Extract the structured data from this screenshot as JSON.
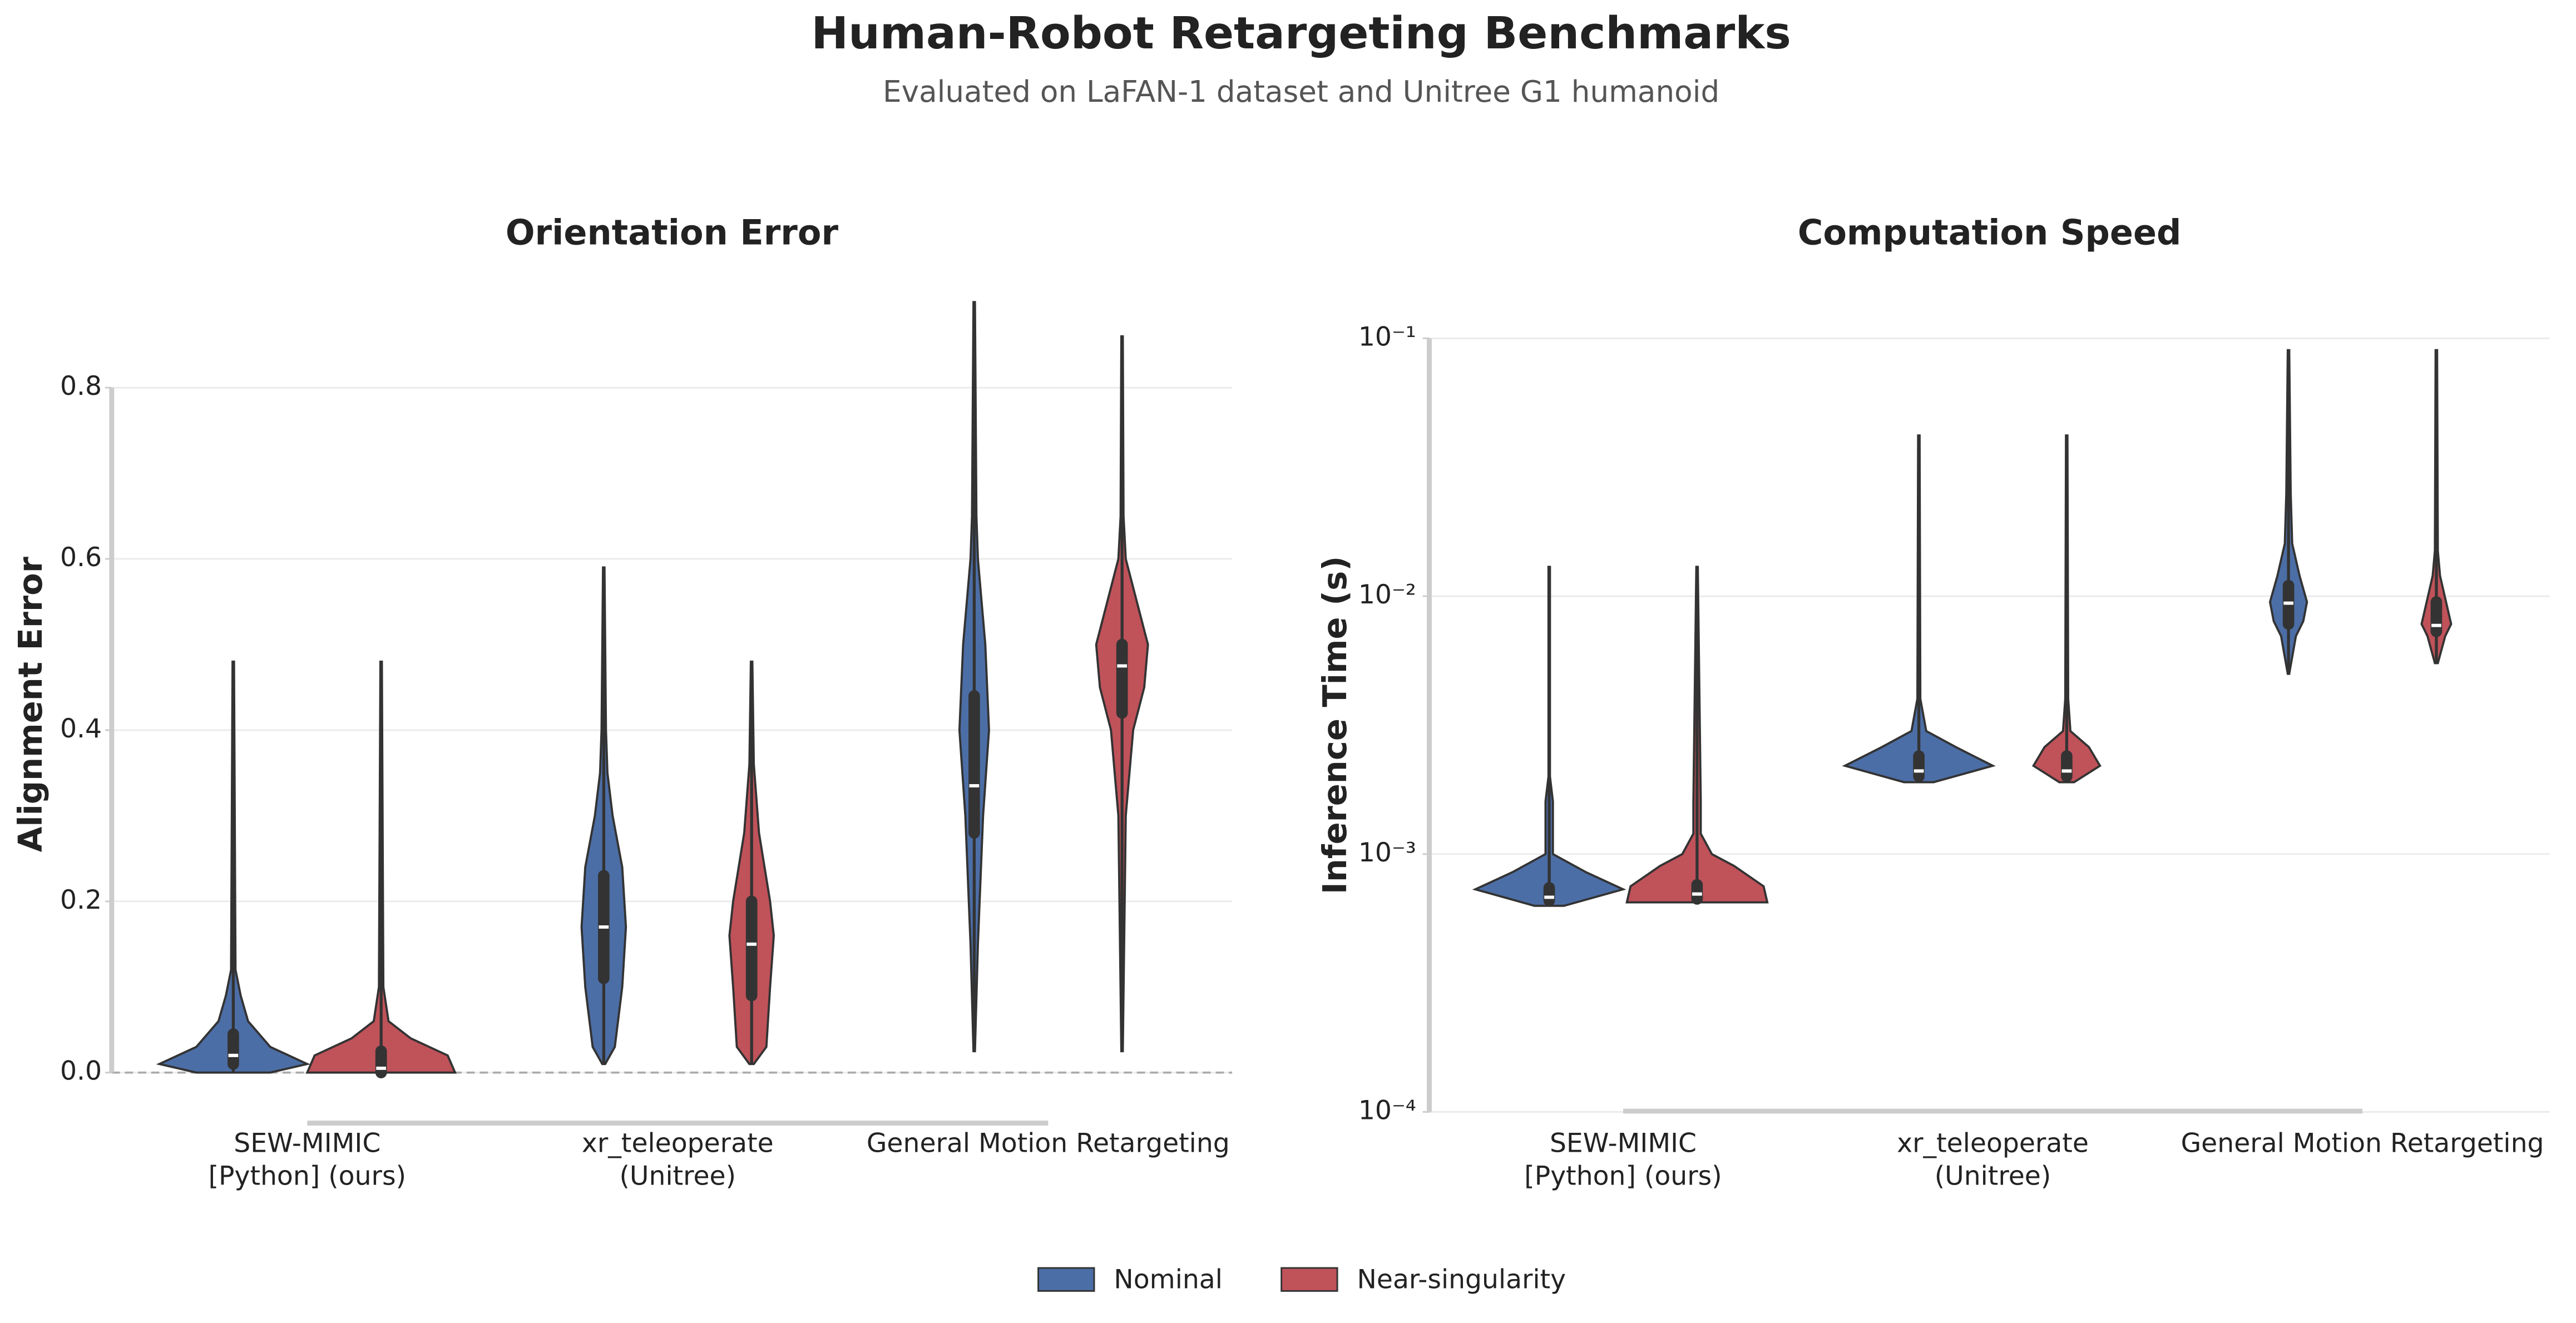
{
  "title": "Human-Robot Retargeting Benchmarks",
  "subtitle": "Evaluated on LaFAN-1 dataset and Unitree G1 humanoid",
  "chart_data": [
    {
      "type": "violin",
      "title": "Orientation Error",
      "ylabel": "Alignment Error",
      "categories": [
        [
          "SEW-MIMIC",
          "[Python] (ours)"
        ],
        [
          "xr_teleoperate",
          "(Unitree)"
        ],
        [
          "General Motion Retargeting"
        ]
      ],
      "ylim": [
        -0.06,
        0.92
      ],
      "yticks": [
        0.0,
        0.2,
        0.4,
        0.6,
        0.8
      ],
      "ytick_labels": [
        "0.0",
        "0.2",
        "0.4",
        "0.6",
        "0.8"
      ],
      "grid": true,
      "log": false,
      "zero_line": true,
      "series": [
        {
          "name": "Nominal",
          "color": "#4c6ea6",
          "values": [
            {
              "min": 0.0,
              "q1": 0.01,
              "median": 0.02,
              "q3": 0.045,
              "max": 0.48,
              "profile": [
                [
                  0.0,
                  0.5
                ],
                [
                  0.01,
                  1.0
                ],
                [
                  0.03,
                  0.5
                ],
                [
                  0.06,
                  0.2
                ],
                [
                  0.09,
                  0.1
                ],
                [
                  0.12,
                  0.03
                ],
                [
                  0.48,
                  0.01
                ]
              ]
            },
            {
              "min": 0.01,
              "q1": 0.11,
              "median": 0.17,
              "q3": 0.23,
              "max": 0.59,
              "profile": [
                [
                  0.01,
                  0.02
                ],
                [
                  0.03,
                  0.15
                ],
                [
                  0.1,
                  0.25
                ],
                [
                  0.17,
                  0.3
                ],
                [
                  0.24,
                  0.25
                ],
                [
                  0.3,
                  0.12
                ],
                [
                  0.35,
                  0.05
                ],
                [
                  0.4,
                  0.03
                ],
                [
                  0.59,
                  0.01
                ]
              ]
            },
            {
              "min": 0.025,
              "q1": 0.28,
              "median": 0.335,
              "q3": 0.44,
              "max": 0.9,
              "profile": [
                [
                  0.025,
                  0.01
                ],
                [
                  0.15,
                  0.05
                ],
                [
                  0.3,
                  0.12
                ],
                [
                  0.4,
                  0.2
                ],
                [
                  0.5,
                  0.15
                ],
                [
                  0.6,
                  0.05
                ],
                [
                  0.65,
                  0.03
                ],
                [
                  0.9,
                  0.01
                ]
              ]
            }
          ]
        },
        {
          "name": "Near-singularity",
          "color": "#c0525a",
          "values": [
            {
              "min": 0.0,
              "q1": 0.0,
              "median": 0.005,
              "q3": 0.025,
              "max": 0.48,
              "profile": [
                [
                  0.0,
                  1.0
                ],
                [
                  0.02,
                  0.9
                ],
                [
                  0.04,
                  0.4
                ],
                [
                  0.06,
                  0.1
                ],
                [
                  0.1,
                  0.03
                ],
                [
                  0.48,
                  0.01
                ]
              ]
            },
            {
              "min": 0.01,
              "q1": 0.09,
              "median": 0.15,
              "q3": 0.2,
              "max": 0.48,
              "profile": [
                [
                  0.01,
                  0.03
                ],
                [
                  0.03,
                  0.2
                ],
                [
                  0.1,
                  0.25
                ],
                [
                  0.16,
                  0.3
                ],
                [
                  0.2,
                  0.25
                ],
                [
                  0.28,
                  0.1
                ],
                [
                  0.36,
                  0.03
                ],
                [
                  0.48,
                  0.01
                ]
              ]
            },
            {
              "min": 0.025,
              "q1": 0.42,
              "median": 0.475,
              "q3": 0.5,
              "max": 0.86,
              "profile": [
                [
                  0.025,
                  0.01
                ],
                [
                  0.3,
                  0.05
                ],
                [
                  0.4,
                  0.15
                ],
                [
                  0.45,
                  0.3
                ],
                [
                  0.5,
                  0.35
                ],
                [
                  0.55,
                  0.2
                ],
                [
                  0.6,
                  0.05
                ],
                [
                  0.65,
                  0.02
                ],
                [
                  0.86,
                  0.01
                ]
              ]
            }
          ]
        }
      ]
    },
    {
      "type": "violin",
      "title": "Computation Speed",
      "ylabel": "Inference Time (s)",
      "categories": [
        [
          "SEW-MIMIC",
          "[Python] (ours)"
        ],
        [
          "xr_teleoperate",
          "(Unitree)"
        ],
        [
          "General Motion Retargeting"
        ]
      ],
      "ylim": [
        0.0001,
        0.1
      ],
      "yticks": [
        {
          "value": 0.0001,
          "label": "10⁻⁴"
        },
        {
          "value": 0.001,
          "label": "10⁻³"
        },
        {
          "value": 0.01,
          "label": "10⁻²"
        },
        {
          "value": 0.1,
          "label": "10⁻¹"
        }
      ],
      "grid": true,
      "log": true,
      "zero_line": false,
      "series": [
        {
          "name": "Nominal",
          "color": "#4c6ea6",
          "values": [
            {
              "min": 0.00063,
              "q1": 0.00066,
              "median": 0.00068,
              "q3": 0.00074,
              "max": 0.013,
              "profile": [
                [
                  0.00063,
                  0.2
                ],
                [
                  0.00073,
                  1.0
                ],
                [
                  0.00085,
                  0.5
                ],
                [
                  0.001,
                  0.05
                ],
                [
                  0.0016,
                  0.05
                ],
                [
                  0.002,
                  0.01
                ],
                [
                  0.013,
                  0.01
                ]
              ]
            },
            {
              "min": 0.0019,
              "q1": 0.002,
              "median": 0.0021,
              "q3": 0.0024,
              "max": 0.042,
              "profile": [
                [
                  0.0019,
                  0.2
                ],
                [
                  0.0022,
                  1.0
                ],
                [
                  0.0026,
                  0.5
                ],
                [
                  0.003,
                  0.1
                ],
                [
                  0.004,
                  0.02
                ],
                [
                  0.042,
                  0.01
                ]
              ]
            },
            {
              "min": 0.005,
              "q1": 0.0078,
              "median": 0.0094,
              "q3": 0.011,
              "max": 0.09,
              "profile": [
                [
                  0.005,
                  0.01
                ],
                [
                  0.007,
                  0.1
                ],
                [
                  0.008,
                  0.2
                ],
                [
                  0.0095,
                  0.25
                ],
                [
                  0.012,
                  0.15
                ],
                [
                  0.016,
                  0.05
                ],
                [
                  0.025,
                  0.03
                ],
                [
                  0.09,
                  0.01
                ]
              ]
            }
          ]
        },
        {
          "name": "Near-singularity",
          "color": "#c0525a",
          "values": [
            {
              "min": 0.00065,
              "q1": 0.00067,
              "median": 0.0007,
              "q3": 0.00076,
              "max": 0.013,
              "profile": [
                [
                  0.00065,
                  0.95
                ],
                [
                  0.00075,
                  0.9
                ],
                [
                  0.0009,
                  0.5
                ],
                [
                  0.001,
                  0.2
                ],
                [
                  0.0012,
                  0.05
                ],
                [
                  0.0016,
                  0.05
                ],
                [
                  0.013,
                  0.01
                ]
              ]
            },
            {
              "min": 0.0019,
              "q1": 0.002,
              "median": 0.0021,
              "q3": 0.0024,
              "max": 0.042,
              "profile": [
                [
                  0.0019,
                  0.1
                ],
                [
                  0.0022,
                  0.45
                ],
                [
                  0.0026,
                  0.3
                ],
                [
                  0.003,
                  0.05
                ],
                [
                  0.004,
                  0.02
                ],
                [
                  0.042,
                  0.01
                ]
              ]
            },
            {
              "min": 0.0055,
              "q1": 0.0073,
              "median": 0.0077,
              "q3": 0.0095,
              "max": 0.09,
              "profile": [
                [
                  0.0055,
                  0.02
                ],
                [
                  0.007,
                  0.12
                ],
                [
                  0.0078,
                  0.2
                ],
                [
                  0.009,
                  0.15
                ],
                [
                  0.012,
                  0.05
                ],
                [
                  0.015,
                  0.02
                ],
                [
                  0.09,
                  0.01
                ]
              ]
            }
          ]
        }
      ]
    }
  ]
}
